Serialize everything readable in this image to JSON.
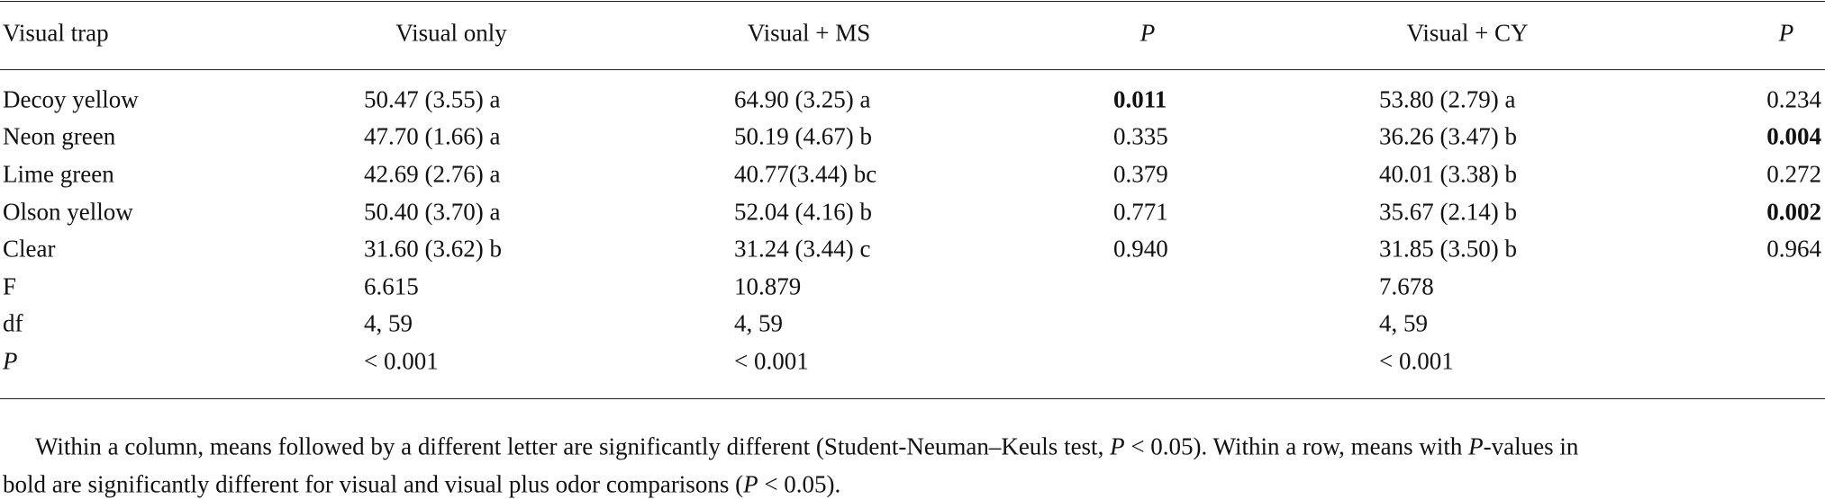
{
  "table": {
    "header": [
      "Visual trap",
      "Visual only",
      "Visual + MS",
      {
        "text": "P",
        "italic": true
      },
      "Visual + CY",
      {
        "text": "P",
        "italic": true
      }
    ],
    "rows": [
      [
        "Decoy yellow",
        "50.47 (3.55) a",
        "64.90 (3.25) a",
        {
          "text": "0.011",
          "bold": true
        },
        "53.80 (2.79) a",
        "0.234"
      ],
      [
        "Neon green",
        "47.70 (1.66) a",
        "50.19 (4.67) b",
        "0.335",
        "36.26 (3.47) b",
        {
          "text": "0.004",
          "bold": true
        }
      ],
      [
        "Lime green",
        "42.69 (2.76) a",
        "40.77(3.44) bc",
        "0.379",
        "40.01 (3.38) b",
        "0.272"
      ],
      [
        "Olson yellow",
        "50.40 (3.70) a",
        "52.04 (4.16) b",
        "0.771",
        "35.67 (2.14) b",
        {
          "text": "0.002",
          "bold": true
        }
      ],
      [
        "Clear",
        "31.60 (3.62) b",
        "31.24 (3.44) c",
        "0.940",
        "31.85 (3.50) b",
        "0.964"
      ],
      [
        "F",
        "6.615",
        "10.879",
        null,
        "7.678",
        null
      ],
      [
        "df",
        "4, 59",
        "4, 59",
        null,
        "4, 59",
        null
      ],
      [
        {
          "text": "P",
          "italic": true
        },
        "< 0.001",
        "< 0.001",
        null,
        "< 0.001",
        null
      ]
    ]
  },
  "footnote": [
    [
      {
        "text": "Within a column, means followed by a different letter are significantly different (Student-Neuman–Keuls test, "
      },
      {
        "text": "P",
        "italic": true
      },
      {
        "text": " < 0.05). Within a row, means with "
      },
      {
        "text": "P",
        "italic": true
      },
      {
        "text": "-values in"
      }
    ],
    [
      {
        "text": "bold are significantly different for visual and visual plus odor comparisons ("
      },
      {
        "text": "P",
        "italic": true
      },
      {
        "text": " < 0.05)."
      }
    ]
  ]
}
